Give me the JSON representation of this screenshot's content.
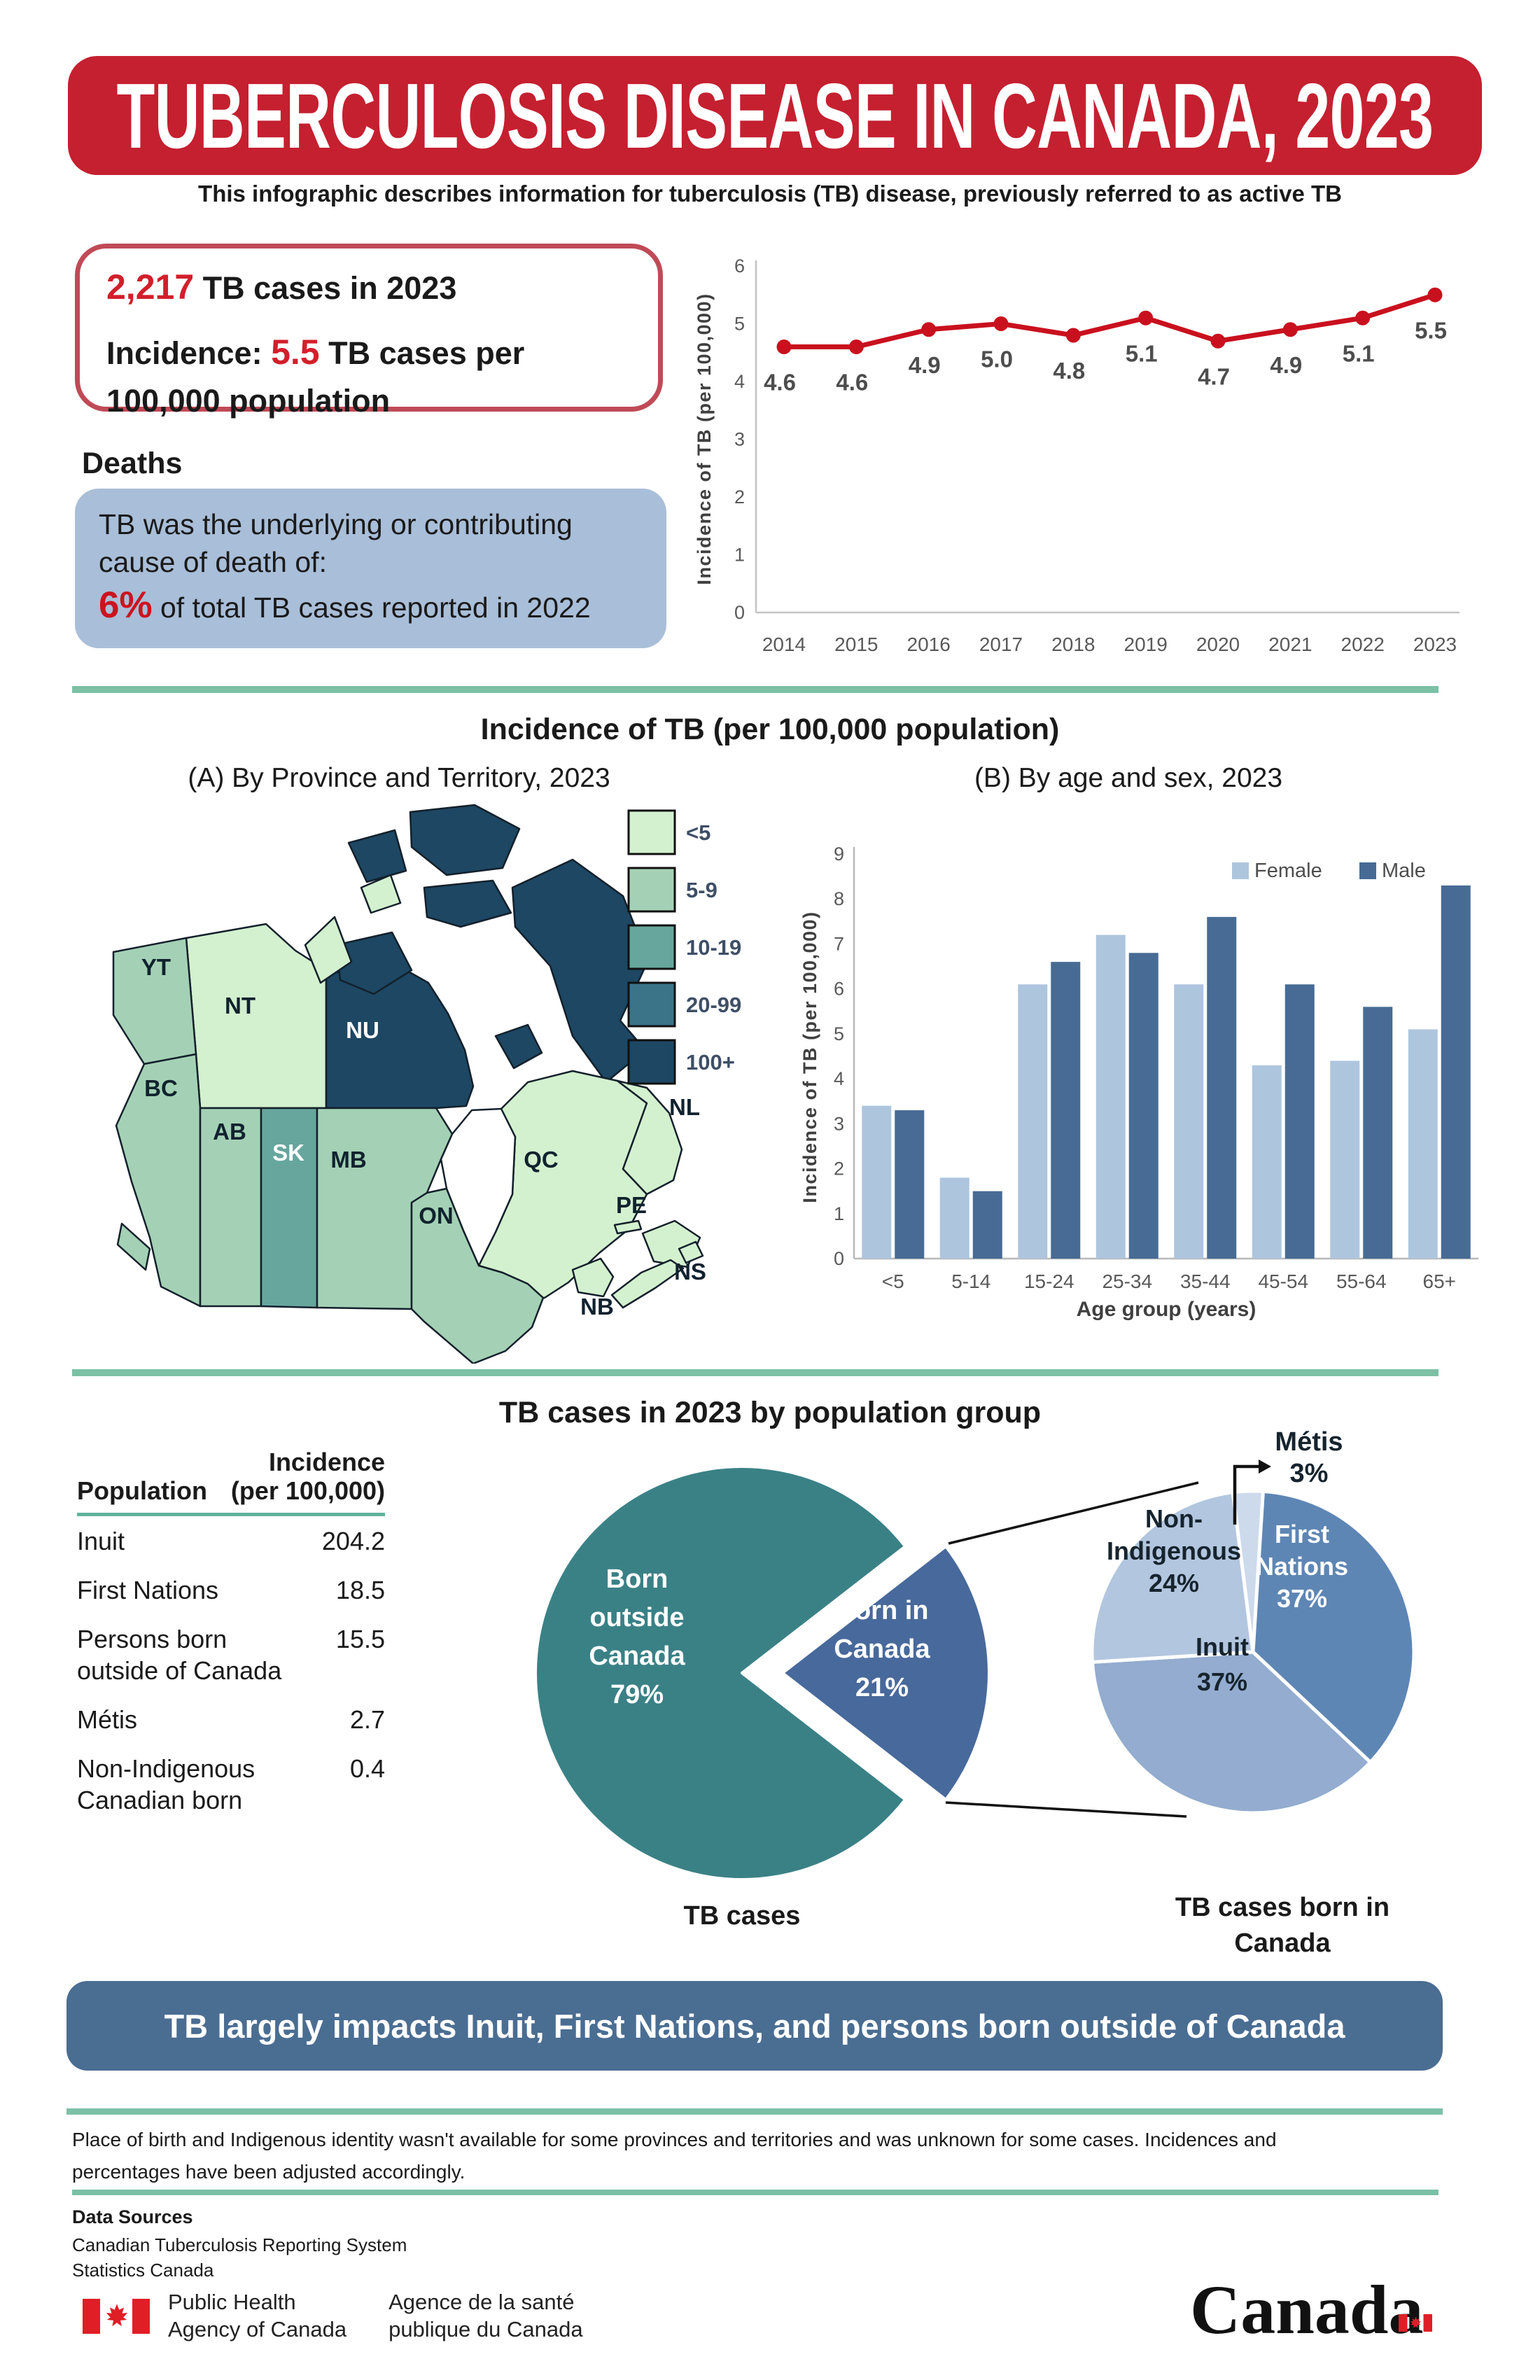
{
  "colors": {
    "banner_red": "#c42030",
    "accent_red": "#d21f2b",
    "line_red": "#c9101e",
    "teal_divider": "#7cc0a6",
    "deaths_box_blue": "#a9bed8",
    "bottom_banner_blue": "#4a6d92"
  },
  "header": {
    "title": "TUBERCULOSIS DISEASE IN CANADA, 2023",
    "subtitle": "This infographic describes information for tuberculosis (TB) disease, previously referred to as active TB"
  },
  "stats_box": {
    "cases_value": "2,217",
    "cases_suffix": " TB cases in 2023",
    "incidence_prefix": "Incidence: ",
    "incidence_value": "5.5",
    "incidence_suffix": " TB cases per 100,000 population"
  },
  "deaths": {
    "heading": "Deaths",
    "line1": "TB was the underlying or contributing cause of death of:",
    "pct": "6%",
    "line2": " of total TB cases reported in 2022"
  },
  "section_incidence": {
    "title": "Incidence of TB (per 100,000 population)",
    "panel_a_title": "(A) By Province and Territory, 2023",
    "panel_b_title": "(B) By age and sex, 2023"
  },
  "section_population": {
    "title": "TB cases in 2023 by population group"
  },
  "table": {
    "col1_header": "Population",
    "col2_header_line1": "Incidence",
    "col2_header_line2": "(per 100,000)",
    "rows": [
      {
        "label": "Inuit",
        "value": "204.2"
      },
      {
        "label": "First Nations",
        "value": "18.5"
      },
      {
        "label": "Persons born outside of Canada",
        "value": "15.5"
      },
      {
        "label": "Métis",
        "value": "2.7"
      },
      {
        "label": "Non-Indigenous Canadian born",
        "value": "0.4"
      }
    ]
  },
  "chart_data": [
    {
      "id": "trend",
      "type": "line",
      "ylabel": "Incidence of TB (per 100,000)",
      "x": [
        "2014",
        "2015",
        "2016",
        "2017",
        "2018",
        "2019",
        "2020",
        "2021",
        "2022",
        "2023"
      ],
      "values": [
        4.6,
        4.6,
        4.9,
        5.0,
        4.8,
        5.1,
        4.7,
        4.9,
        5.1,
        5.5
      ],
      "ylim": [
        0,
        6
      ],
      "yticks": [
        0,
        1,
        2,
        3,
        4,
        5,
        6
      ],
      "line_color": "#c9101e",
      "grid": false,
      "data_labels": [
        "4.6",
        "4.6",
        "4.9",
        "5.0",
        "4.8",
        "5.1",
        "4.7",
        "4.9",
        "5.1",
        "5.5"
      ]
    },
    {
      "id": "age_sex",
      "type": "bar",
      "title": "(B) By age and sex, 2023",
      "categories": [
        "<5",
        "5-14",
        "15-24",
        "25-34",
        "35-44",
        "45-54",
        "55-64",
        "65+"
      ],
      "series": [
        {
          "name": "Female",
          "color": "#aec5de",
          "values": [
            3.4,
            1.8,
            6.1,
            7.2,
            6.1,
            4.3,
            4.4,
            5.1
          ]
        },
        {
          "name": "Male",
          "color": "#476b94",
          "values": [
            3.3,
            1.5,
            6.6,
            6.8,
            7.6,
            6.1,
            5.6,
            8.3
          ]
        }
      ],
      "ylim": [
        0,
        9
      ],
      "yticks": [
        0,
        1,
        2,
        3,
        4,
        5,
        6,
        7,
        8,
        9
      ],
      "ylabel": "Incidence of TB (per 100,000)",
      "xlabel": "Age group (years)",
      "legend_position": "top-right",
      "grid": false
    },
    {
      "id": "pie_birth",
      "type": "pie",
      "caption": "TB cases",
      "slices": [
        {
          "label": "Born outside Canada",
          "lines": [
            "Born",
            "outside",
            "Canada"
          ],
          "pct": 79,
          "color": "#3a8186",
          "text_color": "#ffffff"
        },
        {
          "label": "Born in Canada",
          "lines": [
            "Born in",
            "Canada"
          ],
          "pct": 21,
          "color": "#48699b",
          "text_color": "#ffffff",
          "exploded": true
        }
      ]
    },
    {
      "id": "pie_born_in_canada",
      "type": "pie",
      "caption": "TB cases born in Canada",
      "slices": [
        {
          "label": "First Nations",
          "lines": [
            "First",
            "Nations"
          ],
          "pct": 37,
          "color": "#5e86b4",
          "text_color": "#ffffff"
        },
        {
          "label": "Inuit",
          "lines": [
            "Inuit"
          ],
          "pct": 37,
          "color": "#93accf",
          "text_color": "#16242e"
        },
        {
          "label": "Non-Indigenous",
          "lines": [
            "Non-",
            "Indigenous"
          ],
          "pct": 24,
          "color": "#b2c6df",
          "text_color": "#16242e"
        },
        {
          "label": "Métis",
          "lines": [
            "Métis"
          ],
          "pct": 3,
          "color": "#ccdaec",
          "text_color": "#16242e",
          "external_label": true
        }
      ]
    },
    {
      "id": "map_provinces",
      "type": "heatmap",
      "title": "(A) By Province and Territory, 2023",
      "legend": [
        {
          "bin": "<5",
          "color": "#d3f1cf"
        },
        {
          "bin": "5-9",
          "color": "#a4d1b5"
        },
        {
          "bin": "10-19",
          "color": "#67a69d"
        },
        {
          "bin": "20-99",
          "color": "#3b7389"
        },
        {
          "bin": "100+",
          "color": "#1d4763"
        }
      ],
      "regions": [
        {
          "code": "YT",
          "bin": "5-9"
        },
        {
          "code": "NT",
          "bin": "<5"
        },
        {
          "code": "NU",
          "bin": "100+"
        },
        {
          "code": "BC",
          "bin": "5-9"
        },
        {
          "code": "AB",
          "bin": "5-9"
        },
        {
          "code": "SK",
          "bin": "10-19"
        },
        {
          "code": "MB",
          "bin": "5-9"
        },
        {
          "code": "ON",
          "bin": "5-9"
        },
        {
          "code": "QC",
          "bin": "<5"
        },
        {
          "code": "NL",
          "bin": "<5"
        },
        {
          "code": "PE",
          "bin": "<5"
        },
        {
          "code": "NS",
          "bin": "<5"
        },
        {
          "code": "NB",
          "bin": "<5"
        }
      ]
    }
  ],
  "bottom_banner": {
    "text": "TB largely impacts Inuit, First Nations, and persons born outside of Canada"
  },
  "footnote": {
    "text": "Place of birth and Indigenous identity wasn't available for some provinces and territories and was unknown for some cases. Incidences and percentages have been adjusted accordingly."
  },
  "sources": {
    "heading": "Data Sources",
    "items": [
      "Canadian Tuberculosis Reporting System",
      "Statistics Canada"
    ]
  },
  "footer": {
    "phac_en_line1": "Public Health",
    "phac_en_line2": "Agency of Canada",
    "phac_fr_line1": "Agence de la santé",
    "phac_fr_line2": "publique du Canada",
    "wordmark": "Canada"
  }
}
